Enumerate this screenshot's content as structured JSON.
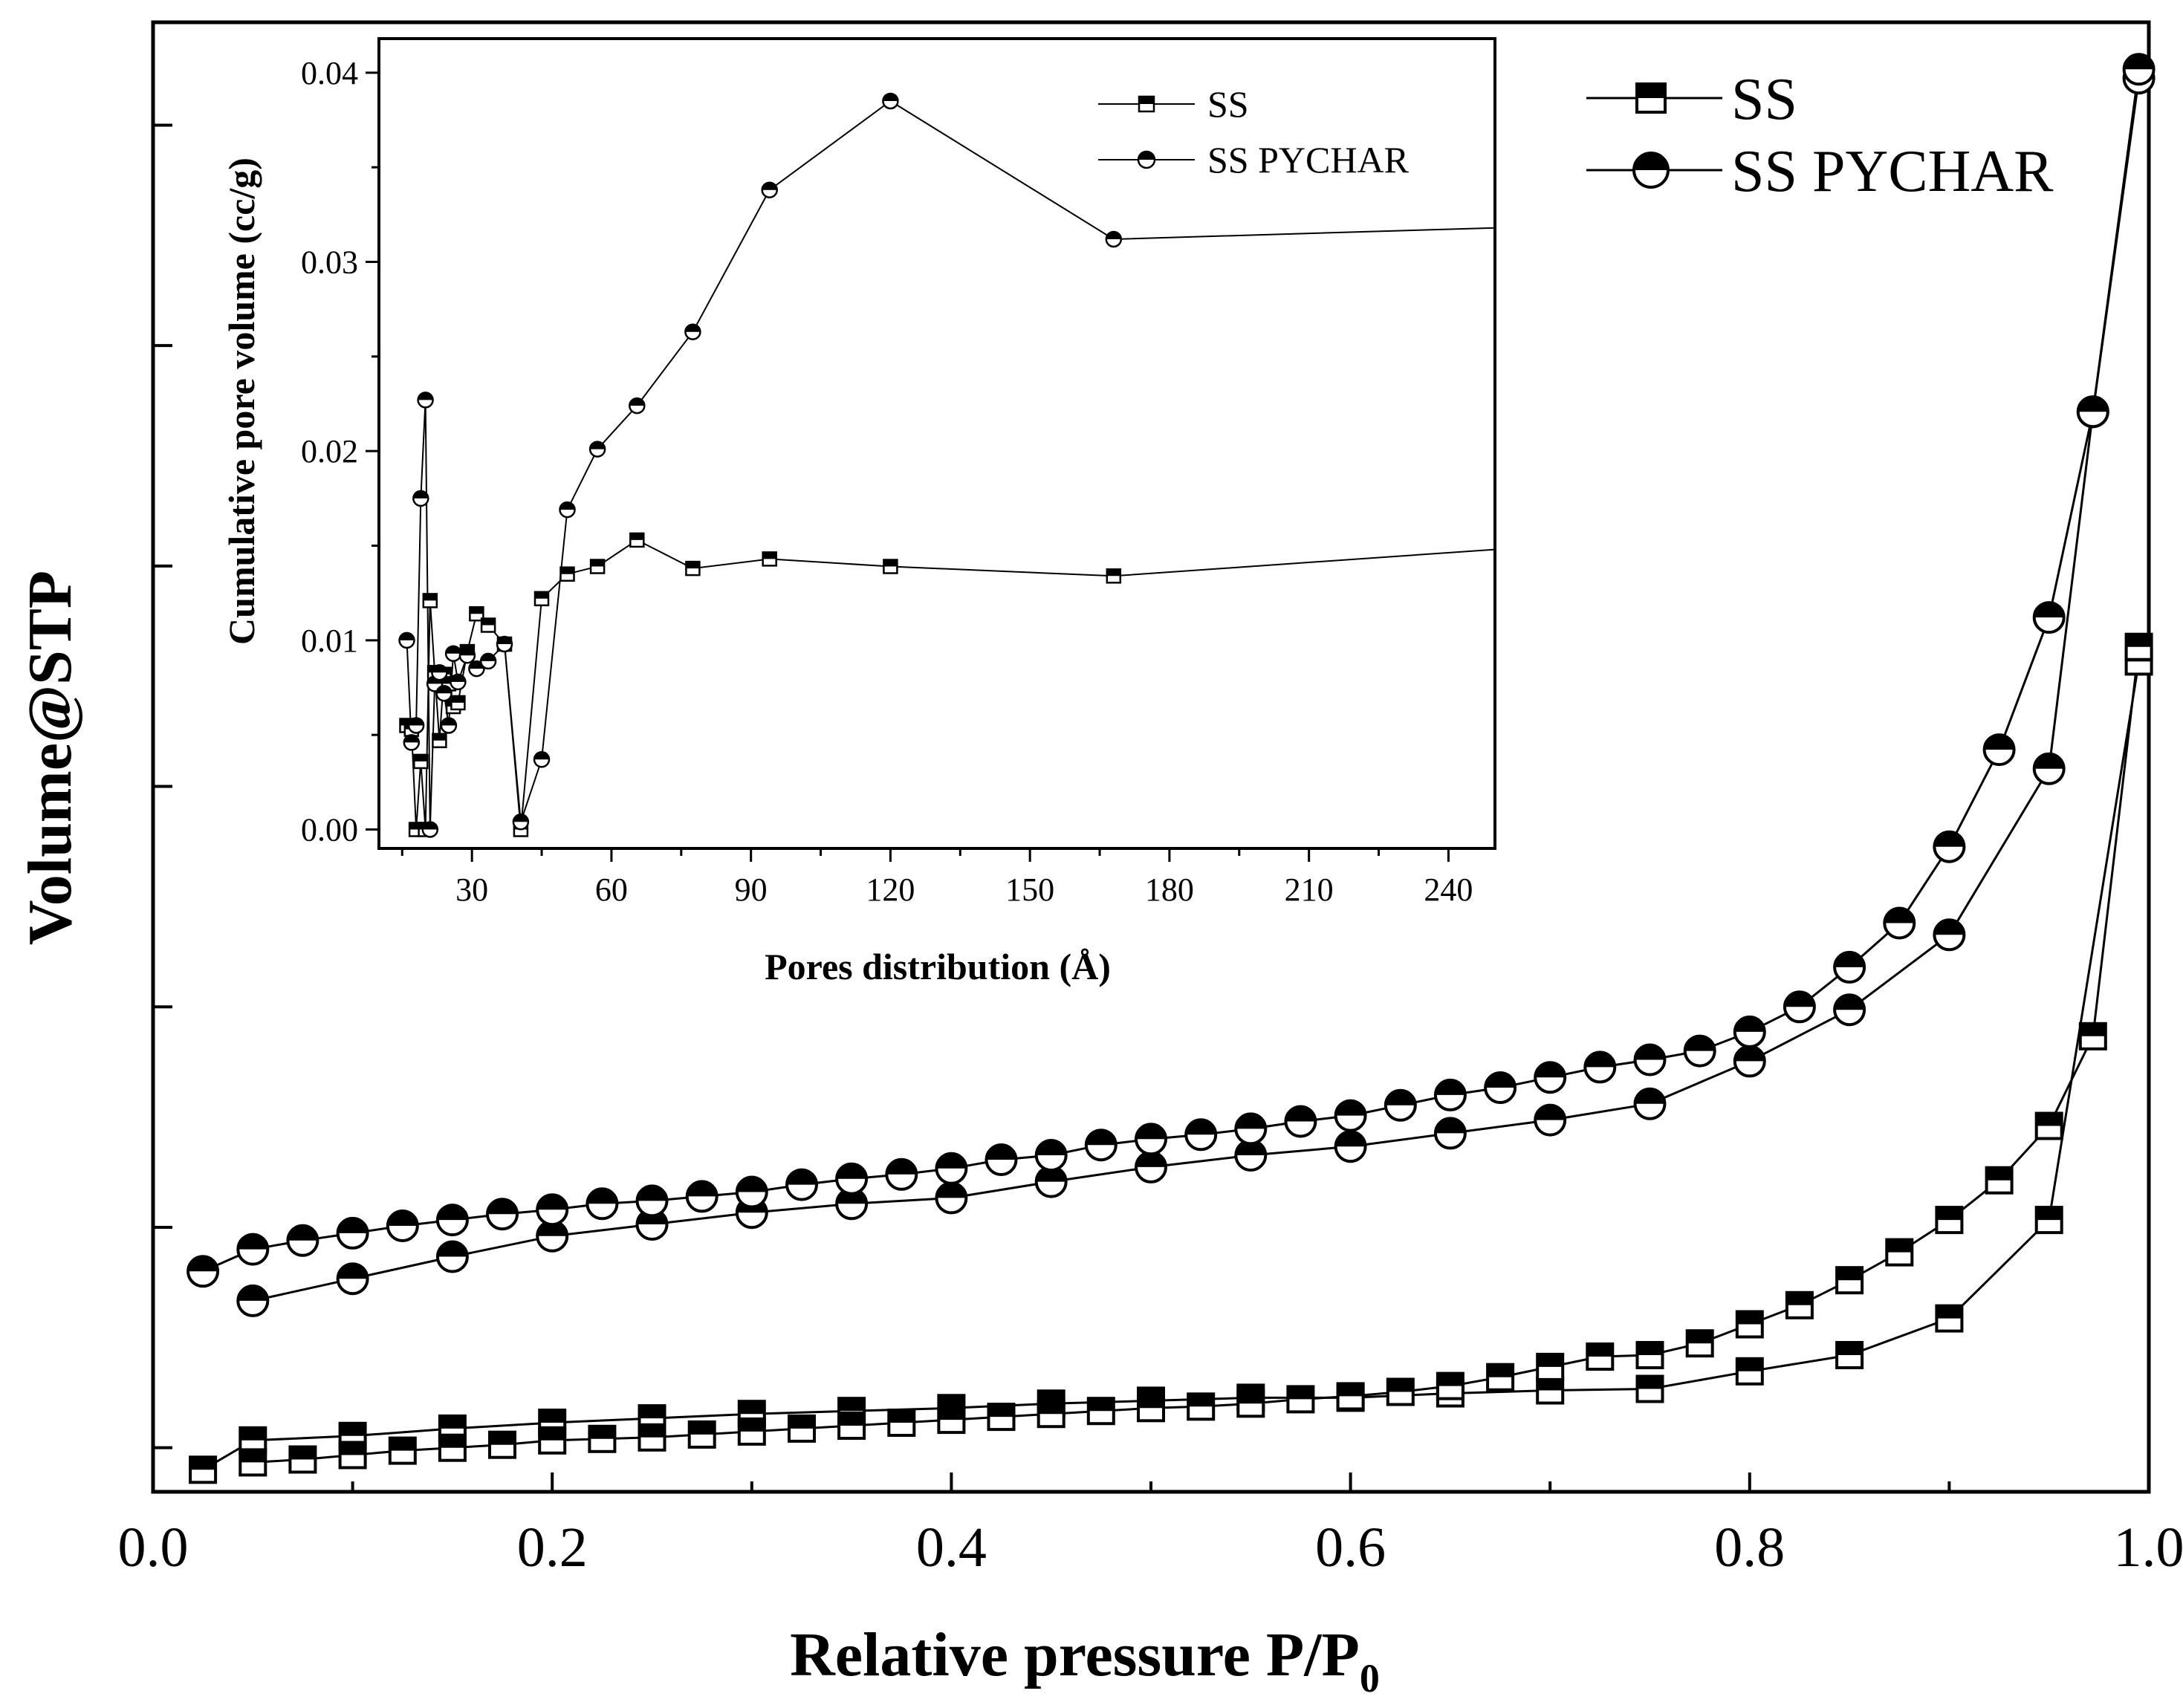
{
  "chart_data": [
    {
      "id": "main",
      "type": "line",
      "title": "",
      "xlabel": "Relative pressure P/P",
      "xlabel_subscript": "0",
      "ylabel": "Volume@STP",
      "xlim": [
        0.0,
        1.0
      ],
      "ylim": [
        0.0,
        1.0
      ],
      "xticks": [
        "0.0",
        "0.2",
        "0.4",
        "0.6",
        "0.8",
        "1.0"
      ],
      "ytick_values": [
        0.03,
        0.18,
        0.33,
        0.48,
        0.63,
        0.78,
        0.93
      ],
      "yticks_labeled": false,
      "legend_position": "top-right",
      "series": [
        {
          "name": "SS",
          "branch": "adsorption",
          "marker": "square-half-filled",
          "x": [
            0.025,
            0.05,
            0.1,
            0.15,
            0.2,
            0.25,
            0.3,
            0.35,
            0.4,
            0.45,
            0.5,
            0.55,
            0.6,
            0.65,
            0.7,
            0.75,
            0.8,
            0.85,
            0.9,
            0.95,
            0.995
          ],
          "y": [
            0.015,
            0.035,
            0.038,
            0.043,
            0.047,
            0.05,
            0.053,
            0.055,
            0.057,
            0.06,
            0.062,
            0.064,
            0.064,
            0.067,
            0.069,
            0.07,
            0.082,
            0.093,
            0.118,
            0.185,
            0.565
          ]
        },
        {
          "name": "SS",
          "branch": "desorption",
          "marker": "square-half-filled",
          "x": [
            0.995,
            0.972,
            0.95,
            0.925,
            0.9,
            0.875,
            0.85,
            0.825,
            0.8,
            0.775,
            0.75,
            0.725,
            0.7,
            0.675,
            0.65,
            0.625,
            0.6,
            0.575,
            0.55,
            0.525,
            0.5,
            0.475,
            0.45,
            0.425,
            0.4,
            0.375,
            0.35,
            0.325,
            0.3,
            0.275,
            0.25,
            0.225,
            0.2,
            0.175,
            0.15,
            0.125,
            0.1,
            0.075,
            0.05
          ],
          "y": [
            0.575,
            0.31,
            0.249,
            0.212,
            0.185,
            0.163,
            0.144,
            0.127,
            0.114,
            0.101,
            0.093,
            0.092,
            0.085,
            0.078,
            0.072,
            0.068,
            0.065,
            0.063,
            0.06,
            0.058,
            0.057,
            0.055,
            0.053,
            0.051,
            0.049,
            0.047,
            0.045,
            0.043,
            0.041,
            0.039,
            0.037,
            0.036,
            0.035,
            0.032,
            0.03,
            0.028,
            0.025,
            0.022,
            0.02
          ]
        },
        {
          "name": "SS PYCHAR",
          "branch": "adsorption",
          "marker": "circle-half-filled",
          "x": [
            0.05,
            0.1,
            0.15,
            0.2,
            0.25,
            0.3,
            0.35,
            0.4,
            0.45,
            0.5,
            0.55,
            0.6,
            0.65,
            0.7,
            0.75,
            0.8,
            0.85,
            0.9,
            0.95,
            0.972,
            0.995
          ],
          "y": [
            0.13,
            0.145,
            0.16,
            0.174,
            0.182,
            0.19,
            0.196,
            0.2,
            0.211,
            0.221,
            0.229,
            0.235,
            0.244,
            0.253,
            0.264,
            0.293,
            0.328,
            0.379,
            0.492,
            0.735,
            0.962
          ]
        },
        {
          "name": "SS PYCHAR",
          "branch": "desorption",
          "marker": "circle-half-filled",
          "x": [
            0.995,
            0.972,
            0.95,
            0.925,
            0.9,
            0.875,
            0.85,
            0.825,
            0.8,
            0.775,
            0.75,
            0.725,
            0.7,
            0.675,
            0.65,
            0.625,
            0.6,
            0.575,
            0.55,
            0.525,
            0.5,
            0.475,
            0.45,
            0.425,
            0.4,
            0.375,
            0.35,
            0.325,
            0.3,
            0.275,
            0.25,
            0.225,
            0.2,
            0.175,
            0.15,
            0.125,
            0.1,
            0.075,
            0.05,
            0.025
          ],
          "y": [
            0.968,
            0.735,
            0.595,
            0.505,
            0.439,
            0.387,
            0.357,
            0.33,
            0.313,
            0.3,
            0.294,
            0.289,
            0.282,
            0.275,
            0.27,
            0.263,
            0.256,
            0.252,
            0.247,
            0.243,
            0.24,
            0.236,
            0.229,
            0.226,
            0.22,
            0.216,
            0.213,
            0.209,
            0.204,
            0.201,
            0.198,
            0.196,
            0.192,
            0.189,
            0.185,
            0.181,
            0.176,
            0.171,
            0.165,
            0.15
          ]
        }
      ],
      "legend": [
        {
          "label": "SS",
          "marker": "square-half-filled"
        },
        {
          "label": "SS PYCHAR",
          "marker": "circle-half-filled"
        }
      ]
    },
    {
      "id": "inset",
      "type": "line",
      "title": "",
      "xlabel": "Pores distribution (Å)",
      "ylabel": "Cumulative pore volume (cc/g)",
      "xlim": [
        10,
        250
      ],
      "ylim": [
        -0.001,
        0.0418
      ],
      "xticks": [
        30,
        60,
        90,
        120,
        150,
        180,
        210,
        240
      ],
      "xtick_labels": [
        "30",
        "60",
        "90",
        "120",
        "150",
        "180",
        "210",
        "240"
      ],
      "yticks": [
        0.0,
        0.01,
        0.02,
        0.03,
        0.04
      ],
      "ytick_labels": [
        "0.00",
        "0.01",
        "0.02",
        "0.03",
        "0.04"
      ],
      "legend_position": "top-right",
      "series": [
        {
          "name": "SS",
          "marker": "square-half-filled",
          "x": [
            16,
            17,
            18,
            19,
            20,
            21,
            22,
            23,
            24,
            25,
            26,
            27,
            29,
            31,
            33.5,
            37,
            40.5,
            45,
            50.5,
            57,
            65.5,
            77.5,
            94,
            120,
            168,
            250
          ],
          "y": [
            0.0055,
            0.0053,
            0.0,
            0.0036,
            0.0,
            0.0121,
            0.0083,
            0.0047,
            0.0082,
            0.0077,
            0.0065,
            0.0067,
            0.0094,
            0.0114,
            0.0108,
            0.0098,
            0.0,
            0.0122,
            0.0135,
            0.0139,
            0.0153,
            0.0138,
            0.0143,
            0.0139,
            0.0134,
            0.0148
          ]
        },
        {
          "name": "SS PYCHAR",
          "marker": "circle-half-filled",
          "x": [
            16,
            17,
            18,
            19,
            20,
            21,
            22,
            23,
            24,
            25,
            26,
            27,
            29,
            31,
            33.5,
            37,
            40.5,
            45,
            50.5,
            57,
            65.5,
            77.5,
            94,
            120,
            168,
            250
          ],
          "y": [
            0.01,
            0.0046,
            0.0055,
            0.0175,
            0.0227,
            0.0,
            0.0077,
            0.0083,
            0.0072,
            0.0055,
            0.0093,
            0.0078,
            0.0092,
            0.0085,
            0.0089,
            0.0098,
            0.0004,
            0.0037,
            0.0169,
            0.0201,
            0.0224,
            0.0263,
            0.0338,
            0.0385,
            0.0312,
            0.0318
          ]
        }
      ],
      "legend": [
        {
          "label": "SS",
          "marker": "square-half-filled"
        },
        {
          "label": "SS PYCHAR",
          "marker": "circle-half-filled"
        }
      ]
    }
  ]
}
